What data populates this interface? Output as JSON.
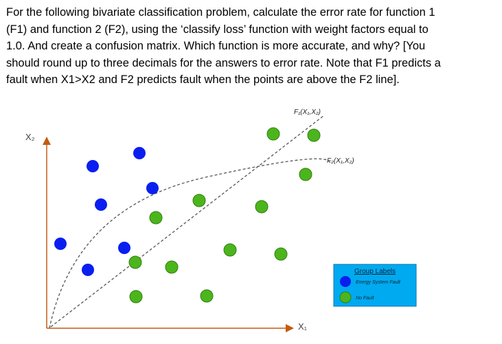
{
  "question": {
    "lines": [
      "For the following bivariate classification problem, calculate the error rate for function 1",
      "(F1) and function 2 (F2), using the ‘classify loss’ function with weight factors equal to",
      "1.0. And create a confusion matrix. Which function is more accurate, and why? [You",
      "should round up to three decimals for the answers to error rate. Note that F1 predicts a",
      "fault when X1>X2 and F2 predicts fault when the points are above the F2 line]."
    ]
  },
  "figure": {
    "y_axis_label": "X₂",
    "x_axis_label": "X₁",
    "f1_label": "F₁(X₁,X₂)",
    "f2_label": "F₂(X₁,X₂)",
    "legend": {
      "title": "Group Labels",
      "items": [
        "Energy System Fault",
        "No Fault"
      ]
    }
  }
}
